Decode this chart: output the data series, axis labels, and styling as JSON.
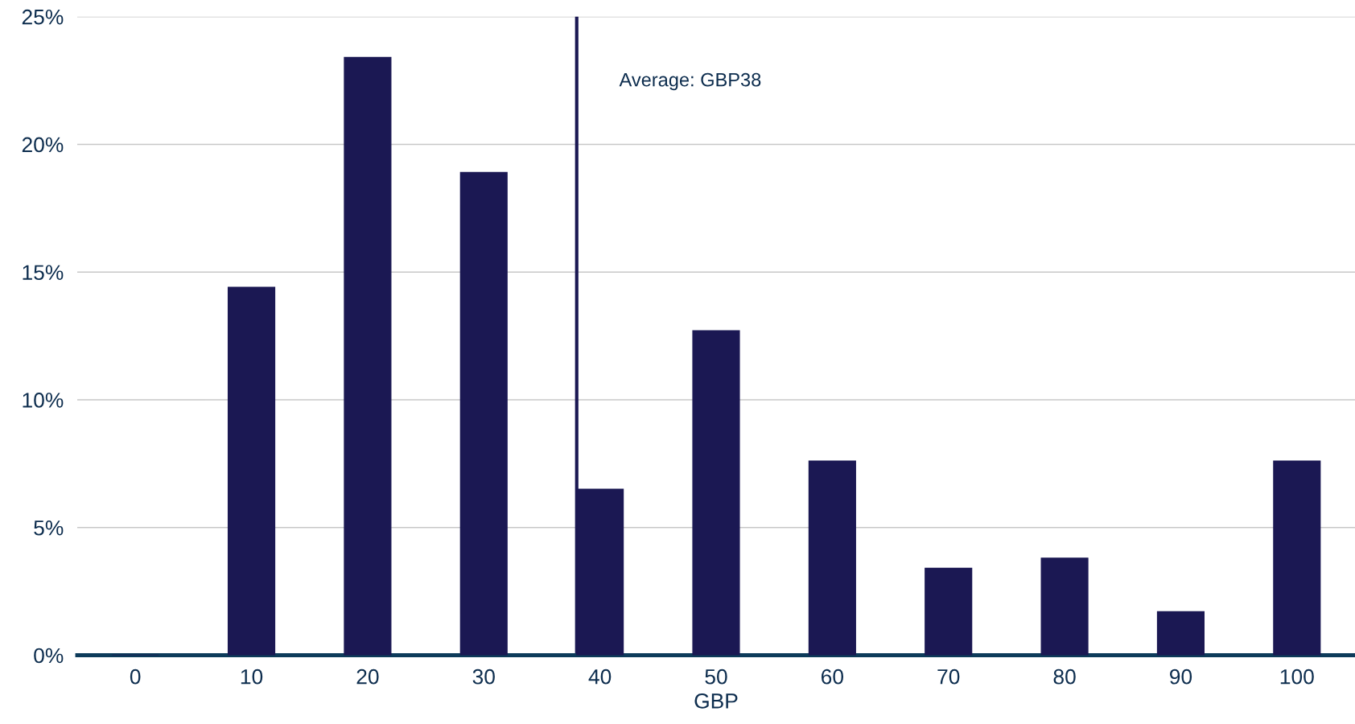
{
  "chart_data": {
    "type": "bar",
    "xlabel": "GBP",
    "x": [
      0,
      10,
      20,
      30,
      40,
      50,
      60,
      70,
      80,
      90,
      100
    ],
    "values": [
      0,
      14.4,
      23.4,
      18.9,
      6.5,
      12.7,
      7.6,
      3.4,
      3.8,
      1.7,
      7.6
    ],
    "color": "#1b1853",
    "xlim": [
      -5,
      105
    ],
    "xticks": [
      0,
      10,
      20,
      30,
      40,
      50,
      60,
      70,
      80,
      90,
      100
    ],
    "ylim": [
      0,
      25
    ],
    "yticks": [
      {
        "value": 0,
        "label": "0%"
      },
      {
        "value": 5,
        "label": "5%"
      },
      {
        "value": 10,
        "label": "10%"
      },
      {
        "value": 15,
        "label": "15%"
      },
      {
        "value": 20,
        "label": "20%"
      },
      {
        "value": 25,
        "label": "25%"
      }
    ],
    "grid": "y",
    "ref_lines": [
      {
        "axis": "x",
        "value": 38,
        "label": "Average: GBP38",
        "color": "#1b1853"
      }
    ]
  }
}
